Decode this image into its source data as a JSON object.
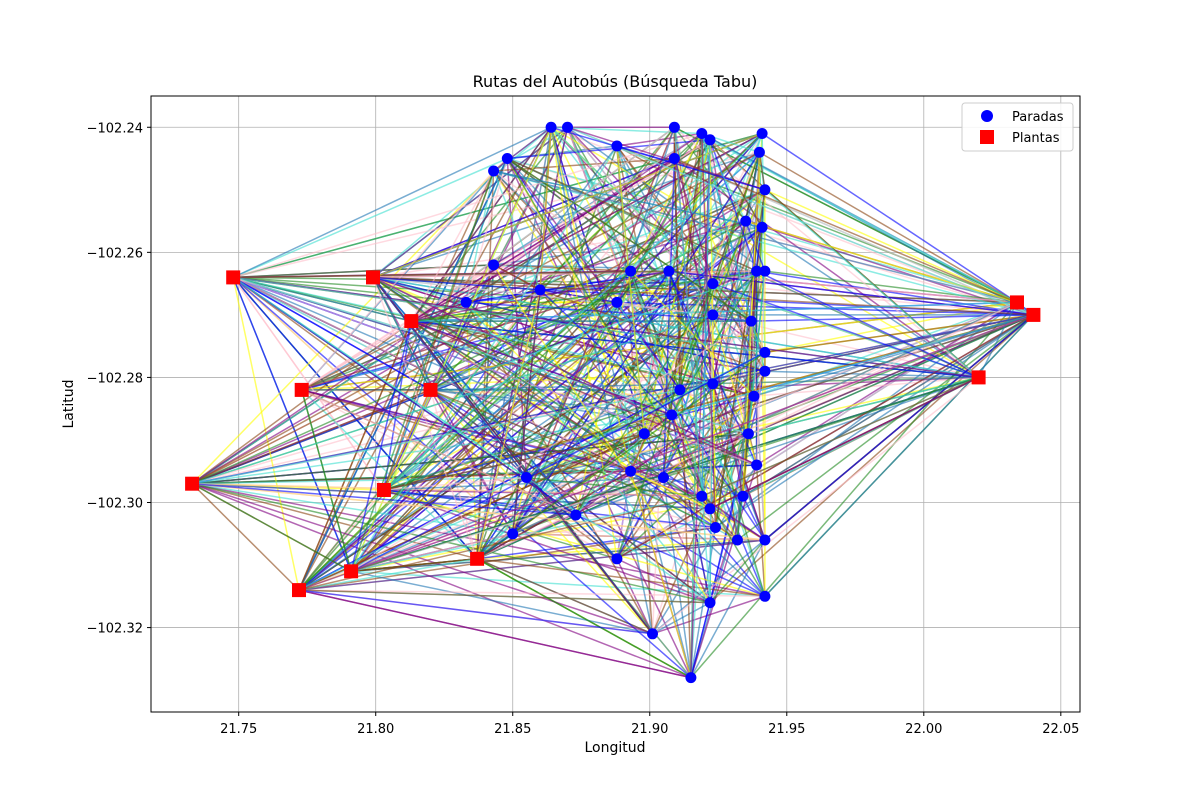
{
  "chart_data": {
    "type": "scatter",
    "title": "Rutas del Autobús (Búsqueda Tabu)",
    "xlabel": "Longitud",
    "ylabel": "Latitud",
    "xlim": [
      21.718,
      22.057
    ],
    "ylim": [
      -102.3335,
      -102.235
    ],
    "xticks": [
      21.75,
      21.8,
      21.85,
      21.9,
      21.95,
      22.0,
      22.05
    ],
    "xtick_labels": [
      "21.75",
      "21.80",
      "21.85",
      "21.90",
      "21.95",
      "22.00",
      "22.05"
    ],
    "yticks": [
      -102.24,
      -102.26,
      -102.28,
      -102.3,
      -102.32
    ],
    "ytick_labels": [
      "−102.24",
      "−102.26",
      "−102.28",
      "−102.30",
      "−102.32"
    ],
    "grid": true,
    "legend": {
      "placement": "top-right",
      "entries": [
        {
          "label": "Paradas",
          "marker": "circle",
          "color": "#0000ff"
        },
        {
          "label": "Plantas",
          "marker": "square",
          "color": "#ff0000"
        }
      ]
    },
    "series": [
      {
        "name": "Paradas",
        "color": "#0000ff",
        "marker": "circle",
        "points": [
          [
            21.864,
            -102.24
          ],
          [
            21.87,
            -102.24
          ],
          [
            21.888,
            -102.243
          ],
          [
            21.909,
            -102.24
          ],
          [
            21.919,
            -102.241
          ],
          [
            21.922,
            -102.242
          ],
          [
            21.941,
            -102.241
          ],
          [
            21.848,
            -102.245
          ],
          [
            21.843,
            -102.247
          ],
          [
            21.909,
            -102.245
          ],
          [
            21.94,
            -102.244
          ],
          [
            21.942,
            -102.25
          ],
          [
            21.935,
            -102.255
          ],
          [
            21.941,
            -102.256
          ],
          [
            21.843,
            -102.262
          ],
          [
            21.86,
            -102.266
          ],
          [
            21.893,
            -102.263
          ],
          [
            21.907,
            -102.263
          ],
          [
            21.923,
            -102.265
          ],
          [
            21.939,
            -102.263
          ],
          [
            21.942,
            -102.263
          ],
          [
            21.833,
            -102.268
          ],
          [
            21.888,
            -102.268
          ],
          [
            21.923,
            -102.27
          ],
          [
            21.937,
            -102.271
          ],
          [
            21.942,
            -102.276
          ],
          [
            21.942,
            -102.279
          ],
          [
            21.938,
            -102.283
          ],
          [
            21.923,
            -102.281
          ],
          [
            21.911,
            -102.282
          ],
          [
            21.936,
            -102.289
          ],
          [
            21.898,
            -102.289
          ],
          [
            21.908,
            -102.286
          ],
          [
            21.893,
            -102.295
          ],
          [
            21.939,
            -102.294
          ],
          [
            21.905,
            -102.296
          ],
          [
            21.919,
            -102.299
          ],
          [
            21.934,
            -102.299
          ],
          [
            21.922,
            -102.301
          ],
          [
            21.924,
            -102.304
          ],
          [
            21.932,
            -102.306
          ],
          [
            21.942,
            -102.306
          ],
          [
            21.85,
            -102.305
          ],
          [
            21.873,
            -102.302
          ],
          [
            21.888,
            -102.309
          ],
          [
            21.855,
            -102.296
          ],
          [
            21.922,
            -102.316
          ],
          [
            21.942,
            -102.315
          ],
          [
            21.901,
            -102.321
          ],
          [
            21.915,
            -102.328
          ]
        ]
      },
      {
        "name": "Plantas",
        "color": "#ff0000",
        "marker": "square",
        "points": [
          [
            21.748,
            -102.264
          ],
          [
            21.799,
            -102.264
          ],
          [
            21.813,
            -102.271
          ],
          [
            21.773,
            -102.282
          ],
          [
            21.82,
            -102.282
          ],
          [
            21.733,
            -102.297
          ],
          [
            21.803,
            -102.298
          ],
          [
            21.837,
            -102.309
          ],
          [
            21.791,
            -102.311
          ],
          [
            21.772,
            -102.314
          ],
          [
            22.034,
            -102.268
          ],
          [
            22.04,
            -102.27
          ],
          [
            22.02,
            -102.28
          ]
        ]
      }
    ],
    "route_colors": [
      "#0000ff",
      "#228b22",
      "#800080",
      "#ffff00",
      "#40e0d0",
      "#ffc0cb",
      "#1f77b4",
      "#8b4513"
    ]
  }
}
